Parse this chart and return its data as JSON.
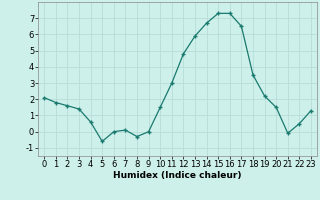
{
  "x": [
    0,
    1,
    2,
    3,
    4,
    5,
    6,
    7,
    8,
    9,
    10,
    11,
    12,
    13,
    14,
    15,
    16,
    17,
    18,
    19,
    20,
    21,
    22,
    23
  ],
  "y": [
    2.1,
    1.8,
    1.6,
    1.4,
    0.6,
    -0.6,
    0.0,
    0.1,
    -0.3,
    0.0,
    1.5,
    3.0,
    4.8,
    5.9,
    6.7,
    7.3,
    7.3,
    6.5,
    3.5,
    2.2,
    1.5,
    -0.1,
    0.5,
    1.3
  ],
  "line_color": "#1a7a6e",
  "marker": "+",
  "marker_size": 3.5,
  "bg_color": "#cdf0eb",
  "grid_color": "#b8ddd8",
  "xlabel": "Humidex (Indice chaleur)",
  "xlim": [
    -0.5,
    23.5
  ],
  "ylim": [
    -1.5,
    8.0
  ],
  "yticks": [
    -1,
    0,
    1,
    2,
    3,
    4,
    5,
    6,
    7
  ],
  "xticks": [
    0,
    1,
    2,
    3,
    4,
    5,
    6,
    7,
    8,
    9,
    10,
    11,
    12,
    13,
    14,
    15,
    16,
    17,
    18,
    19,
    20,
    21,
    22,
    23
  ],
  "label_fontsize": 6.5,
  "tick_fontsize": 6,
  "line_width": 0.9
}
